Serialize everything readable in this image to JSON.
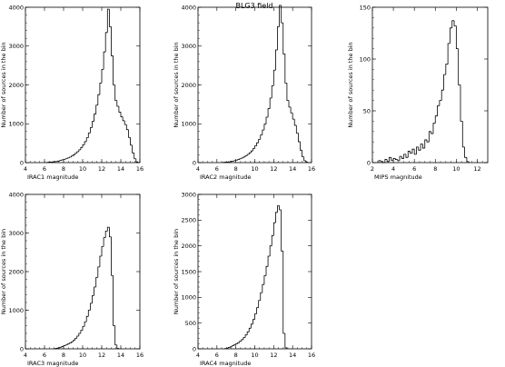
{
  "title": "BLG3 field",
  "chart_data": [
    {
      "type": "bar",
      "subtype": "step-histogram",
      "xlabel": "IRAC1 magnitude",
      "ylabel": "Number of sources in the bin",
      "xlim": [
        4,
        16
      ],
      "ylim": [
        0,
        4000
      ],
      "xticks": [
        4,
        6,
        8,
        10,
        12,
        14,
        16
      ],
      "yticks": [
        0,
        1000,
        2000,
        3000,
        4000
      ],
      "bin_width": 0.2,
      "x": [
        6.2,
        6.4,
        6.6,
        6.8,
        7.0,
        7.2,
        7.4,
        7.6,
        7.8,
        8.0,
        8.2,
        8.4,
        8.6,
        8.8,
        9.0,
        9.2,
        9.4,
        9.6,
        9.8,
        10.0,
        10.2,
        10.4,
        10.6,
        10.8,
        11.0,
        11.2,
        11.4,
        11.6,
        11.8,
        12.0,
        12.2,
        12.4,
        12.6,
        12.8,
        13.0,
        13.2,
        13.4,
        13.6,
        13.8,
        14.0,
        14.2,
        14.4,
        14.6,
        14.8,
        15.0,
        15.2,
        15.4,
        15.6
      ],
      "values": [
        5,
        10,
        15,
        20,
        25,
        30,
        40,
        55,
        70,
        85,
        100,
        120,
        140,
        170,
        200,
        240,
        280,
        330,
        390,
        460,
        540,
        640,
        760,
        900,
        1060,
        1250,
        1480,
        1750,
        2050,
        2400,
        2850,
        3350,
        3950,
        3500,
        2750,
        2000,
        1600,
        1450,
        1300,
        1180,
        1080,
        980,
        850,
        650,
        450,
        250,
        100,
        20
      ]
    },
    {
      "type": "bar",
      "subtype": "step-histogram",
      "xlabel": "IRAC2 magnitude",
      "ylabel": "Number of sources in the bin",
      "xlim": [
        4,
        16
      ],
      "ylim": [
        0,
        4000
      ],
      "xticks": [
        4,
        6,
        8,
        10,
        12,
        14,
        16
      ],
      "yticks": [
        0,
        1000,
        2000,
        3000,
        4000
      ],
      "bin_width": 0.2,
      "x": [
        6.6,
        6.8,
        7.0,
        7.2,
        7.4,
        7.6,
        7.8,
        8.0,
        8.2,
        8.4,
        8.6,
        8.8,
        9.0,
        9.2,
        9.4,
        9.6,
        9.8,
        10.0,
        10.2,
        10.4,
        10.6,
        10.8,
        11.0,
        11.2,
        11.4,
        11.6,
        11.8,
        12.0,
        12.2,
        12.4,
        12.6,
        12.8,
        13.0,
        13.2,
        13.4,
        13.6,
        13.8,
        14.0,
        14.2,
        14.4,
        14.6,
        14.8,
        15.0,
        15.2,
        15.4
      ],
      "values": [
        5,
        10,
        15,
        20,
        28,
        38,
        50,
        65,
        80,
        100,
        120,
        145,
        175,
        210,
        250,
        300,
        360,
        430,
        510,
        600,
        710,
        840,
        990,
        1170,
        1390,
        1660,
        1980,
        2380,
        2900,
        3500,
        4050,
        3600,
        2800,
        2050,
        1600,
        1430,
        1280,
        1120,
        960,
        760,
        540,
        320,
        150,
        50,
        10
      ]
    },
    {
      "type": "bar",
      "subtype": "step-histogram",
      "xlabel": "MIPS magnitude",
      "ylabel": "Number of sources in the bin",
      "xlim": [
        2,
        13
      ],
      "ylim": [
        0,
        150
      ],
      "xticks": [
        2,
        4,
        6,
        8,
        10,
        12
      ],
      "yticks": [
        0,
        50,
        100,
        150
      ],
      "bin_width": 0.2,
      "x": [
        2.6,
        2.8,
        3.0,
        3.2,
        3.4,
        3.6,
        3.8,
        4.0,
        4.2,
        4.4,
        4.6,
        4.8,
        5.0,
        5.2,
        5.4,
        5.6,
        5.8,
        6.0,
        6.2,
        6.4,
        6.6,
        6.8,
        7.0,
        7.2,
        7.4,
        7.6,
        7.8,
        8.0,
        8.2,
        8.4,
        8.6,
        8.8,
        9.0,
        9.2,
        9.4,
        9.6,
        9.8,
        10.0,
        10.2,
        10.4,
        10.6,
        10.8,
        11.0
      ],
      "values": [
        2,
        1,
        0,
        3,
        1,
        5,
        2,
        4,
        3,
        2,
        6,
        4,
        8,
        5,
        11,
        9,
        13,
        8,
        15,
        12,
        18,
        14,
        22,
        20,
        30,
        28,
        38,
        45,
        55,
        60,
        70,
        85,
        95,
        115,
        130,
        137,
        132,
        110,
        75,
        40,
        15,
        5,
        1
      ]
    },
    {
      "type": "bar",
      "subtype": "step-histogram",
      "xlabel": "IRAC3 magnitude",
      "ylabel": "Number of sources in the bin",
      "xlim": [
        4,
        16
      ],
      "ylim": [
        0,
        4000
      ],
      "xticks": [
        4,
        6,
        8,
        10,
        12,
        14,
        16
      ],
      "yticks": [
        0,
        1000,
        2000,
        3000,
        4000
      ],
      "bin_width": 0.2,
      "x": [
        7.0,
        7.2,
        7.4,
        7.6,
        7.8,
        8.0,
        8.2,
        8.4,
        8.6,
        8.8,
        9.0,
        9.2,
        9.4,
        9.6,
        9.8,
        10.0,
        10.2,
        10.4,
        10.6,
        10.8,
        11.0,
        11.2,
        11.4,
        11.6,
        11.8,
        12.0,
        12.2,
        12.4,
        12.6,
        12.8,
        13.0,
        13.2,
        13.4,
        13.6
      ],
      "values": [
        5,
        15,
        25,
        40,
        60,
        80,
        100,
        125,
        150,
        180,
        220,
        270,
        330,
        400,
        480,
        580,
        700,
        840,
        1000,
        1180,
        1380,
        1600,
        1850,
        2120,
        2400,
        2650,
        2880,
        3050,
        3150,
        2900,
        1900,
        600,
        100,
        10
      ]
    },
    {
      "type": "bar",
      "subtype": "step-histogram",
      "xlabel": "IRAC4 magnitude",
      "ylabel": "Number of sources in the bin",
      "xlim": [
        4,
        16
      ],
      "ylim": [
        0,
        3000
      ],
      "xticks": [
        4,
        6,
        8,
        10,
        12,
        14,
        16
      ],
      "yticks": [
        0,
        500,
        1000,
        1500,
        2000,
        2500,
        3000
      ],
      "bin_width": 0.2,
      "x": [
        6.8,
        7.0,
        7.2,
        7.4,
        7.6,
        7.8,
        8.0,
        8.2,
        8.4,
        8.6,
        8.8,
        9.0,
        9.2,
        9.4,
        9.6,
        9.8,
        10.0,
        10.2,
        10.4,
        10.6,
        10.8,
        11.0,
        11.2,
        11.4,
        11.6,
        11.8,
        12.0,
        12.2,
        12.4,
        12.6,
        12.8,
        13.0,
        13.2
      ],
      "values": [
        5,
        15,
        25,
        40,
        60,
        80,
        100,
        120,
        150,
        180,
        220,
        270,
        330,
        400,
        480,
        570,
        680,
        800,
        940,
        1090,
        1250,
        1420,
        1600,
        1800,
        2000,
        2200,
        2450,
        2650,
        2780,
        2700,
        1900,
        300,
        20
      ]
    }
  ]
}
